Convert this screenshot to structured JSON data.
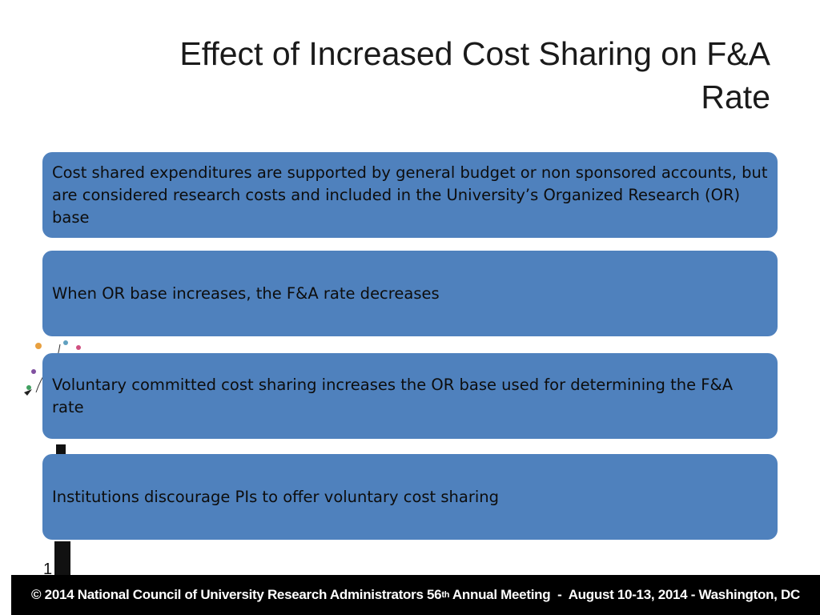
{
  "slide": {
    "title_line1": "Effect of Increased Cost Sharing on F&A",
    "title_line2": "Rate",
    "boxes": [
      {
        "text": "Cost shared expenditures are supported by general budget or  non sponsored accounts, but are considered research costs and included in the University’s Organized Research (OR) base"
      },
      {
        "text": "When OR base increases, the F&A rate decreases"
      },
      {
        "text": "Voluntary committed cost sharing increases  the OR base used  for determining the F&A rate"
      },
      {
        "text": "Institutions discourage PIs to offer voluntary cost sharing"
      }
    ],
    "page_number": "1",
    "footer": {
      "prefix": "© 2014 National Council of University Research Administrators 56",
      "sup": "th",
      "suffix": " Annual Meeting  -  August 10-13, 2014 - Washington, DC"
    }
  },
  "colors": {
    "box_fill": "#4f81bd",
    "footer_bg": "#000000",
    "footer_text": "#ffffff"
  }
}
